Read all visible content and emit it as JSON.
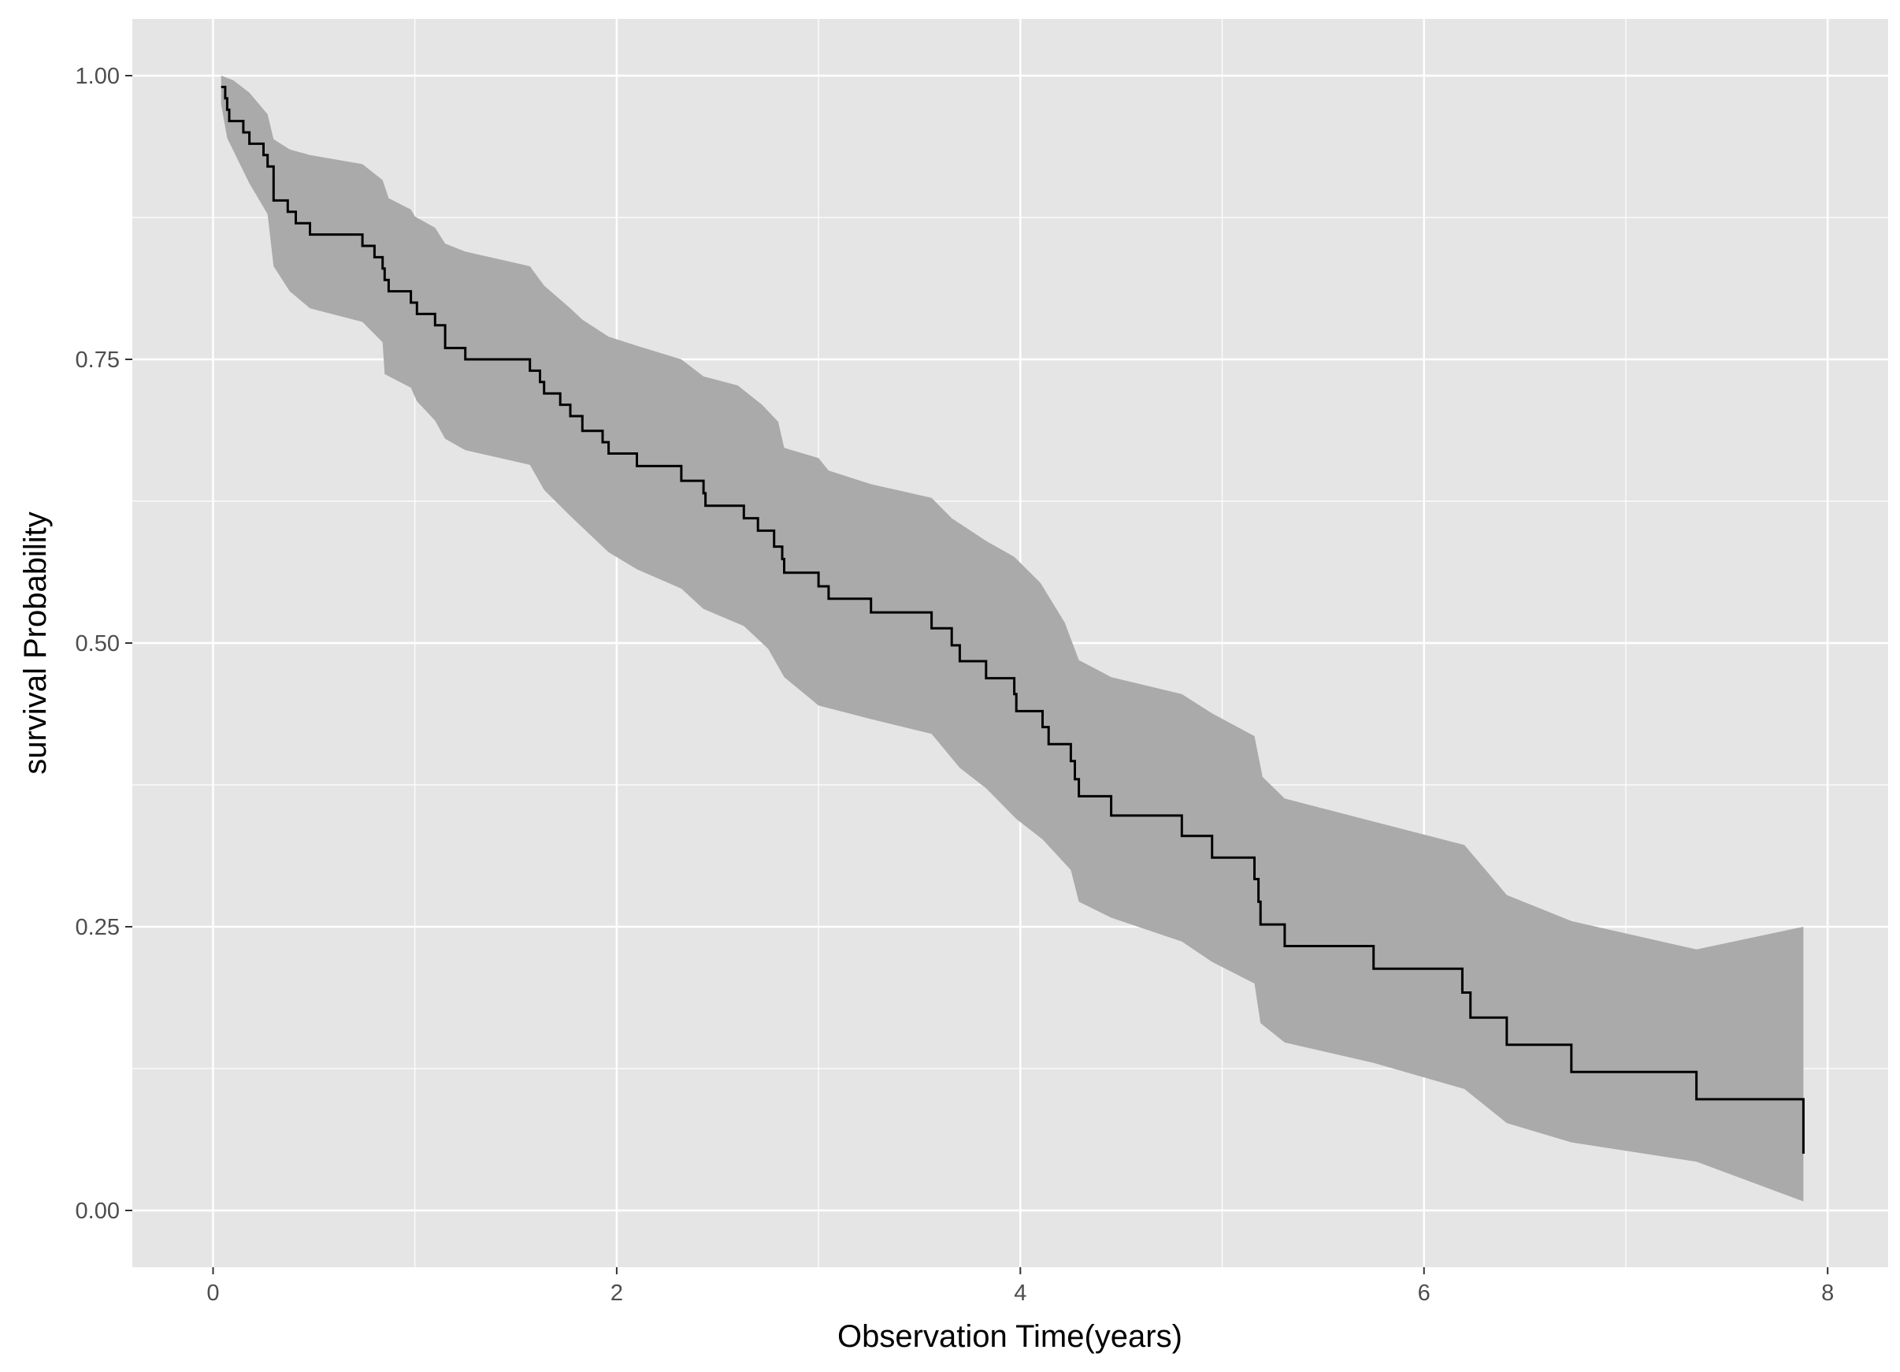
{
  "chart_data": {
    "type": "line",
    "subtype": "kaplan-meier step curve with confidence band",
    "title": "",
    "xlabel": "Observation Time(years)",
    "ylabel": "survival Probability",
    "xlim": [
      -0.4,
      8.3
    ],
    "ylim": [
      -0.05,
      1.05
    ],
    "x_ticks": [
      0,
      2,
      4,
      6,
      8
    ],
    "x_tick_labels": [
      "0",
      "2",
      "4",
      "6",
      "8"
    ],
    "y_ticks": [
      0,
      0.25,
      0.5,
      0.75,
      1
    ],
    "y_tick_labels": [
      "0.00",
      "0.25",
      "0.50",
      "0.75",
      "1.00"
    ],
    "grid": true,
    "legend": "none",
    "colors": {
      "panel_background": "#e5e5e5",
      "grid_line": "#ffffff",
      "band_fill": "#aaaaaa",
      "curve": "#000000"
    },
    "series": [
      {
        "steps": [
          [
            0.04,
            0.99
          ],
          [
            0.06,
            0.98
          ],
          [
            0.07,
            0.97
          ],
          [
            0.08,
            0.96
          ],
          [
            0.15,
            0.95
          ],
          [
            0.18,
            0.94
          ],
          [
            0.25,
            0.93
          ],
          [
            0.27,
            0.92
          ],
          [
            0.3,
            0.89
          ],
          [
            0.37,
            0.88
          ],
          [
            0.41,
            0.87
          ],
          [
            0.48,
            0.86
          ],
          [
            0.74,
            0.85
          ],
          [
            0.8,
            0.84
          ],
          [
            0.84,
            0.83
          ],
          [
            0.85,
            0.82
          ],
          [
            0.87,
            0.81
          ],
          [
            0.98,
            0.8
          ],
          [
            1.01,
            0.79
          ],
          [
            1.1,
            0.78
          ],
          [
            1.15,
            0.76
          ],
          [
            1.25,
            0.75
          ],
          [
            1.57,
            0.74
          ],
          [
            1.62,
            0.73
          ],
          [
            1.64,
            0.72
          ],
          [
            1.72,
            0.71
          ],
          [
            1.77,
            0.7
          ],
          [
            1.83,
            0.687
          ],
          [
            1.93,
            0.677
          ],
          [
            1.96,
            0.667
          ],
          [
            2.1,
            0.656
          ],
          [
            2.32,
            0.643
          ],
          [
            2.43,
            0.632
          ],
          [
            2.44,
            0.621
          ],
          [
            2.63,
            0.61
          ],
          [
            2.7,
            0.599
          ],
          [
            2.78,
            0.585
          ],
          [
            2.82,
            0.574
          ],
          [
            2.83,
            0.562
          ],
          [
            3.0,
            0.55
          ],
          [
            3.05,
            0.539
          ],
          [
            3.26,
            0.527
          ],
          [
            3.56,
            0.513
          ],
          [
            3.66,
            0.498
          ],
          [
            3.7,
            0.484
          ],
          [
            3.83,
            0.469
          ],
          [
            3.97,
            0.455
          ],
          [
            3.98,
            0.44
          ],
          [
            4.11,
            0.426
          ],
          [
            4.14,
            0.411
          ],
          [
            4.25,
            0.396
          ],
          [
            4.27,
            0.38
          ],
          [
            4.29,
            0.365
          ],
          [
            4.45,
            0.348
          ],
          [
            4.8,
            0.33
          ],
          [
            4.95,
            0.311
          ],
          [
            5.16,
            0.292
          ],
          [
            5.18,
            0.272
          ],
          [
            5.19,
            0.252
          ],
          [
            5.31,
            0.233
          ],
          [
            5.75,
            0.213
          ],
          [
            6.19,
            0.192
          ],
          [
            6.23,
            0.17
          ],
          [
            6.41,
            0.146
          ],
          [
            6.73,
            0.122
          ],
          [
            7.35,
            0.098
          ],
          [
            7.88,
            0.05
          ]
        ],
        "upper": [
          [
            0.04,
            1.0
          ],
          [
            0.1,
            0.996
          ],
          [
            0.18,
            0.985
          ],
          [
            0.27,
            0.966
          ],
          [
            0.3,
            0.944
          ],
          [
            0.38,
            0.935
          ],
          [
            0.48,
            0.93
          ],
          [
            0.74,
            0.922
          ],
          [
            0.84,
            0.908
          ],
          [
            0.87,
            0.892
          ],
          [
            0.98,
            0.882
          ],
          [
            1.0,
            0.876
          ],
          [
            1.1,
            0.866
          ],
          [
            1.15,
            0.852
          ],
          [
            1.25,
            0.845
          ],
          [
            1.57,
            0.832
          ],
          [
            1.64,
            0.815
          ],
          [
            1.77,
            0.795
          ],
          [
            1.83,
            0.785
          ],
          [
            1.96,
            0.77
          ],
          [
            2.1,
            0.762
          ],
          [
            2.32,
            0.75
          ],
          [
            2.43,
            0.735
          ],
          [
            2.6,
            0.727
          ],
          [
            2.72,
            0.71
          ],
          [
            2.8,
            0.695
          ],
          [
            2.83,
            0.672
          ],
          [
            3.0,
            0.663
          ],
          [
            3.05,
            0.652
          ],
          [
            3.26,
            0.64
          ],
          [
            3.56,
            0.628
          ],
          [
            3.66,
            0.61
          ],
          [
            3.83,
            0.59
          ],
          [
            3.97,
            0.576
          ],
          [
            4.1,
            0.553
          ],
          [
            4.22,
            0.518
          ],
          [
            4.29,
            0.485
          ],
          [
            4.45,
            0.47
          ],
          [
            4.8,
            0.455
          ],
          [
            4.95,
            0.438
          ],
          [
            5.16,
            0.418
          ],
          [
            5.2,
            0.382
          ],
          [
            5.31,
            0.363
          ],
          [
            6.2,
            0.322
          ],
          [
            6.41,
            0.278
          ],
          [
            6.73,
            0.255
          ],
          [
            7.35,
            0.23
          ],
          [
            7.88,
            0.25
          ]
        ],
        "lower": [
          [
            0.04,
            0.975
          ],
          [
            0.07,
            0.945
          ],
          [
            0.18,
            0.905
          ],
          [
            0.27,
            0.878
          ],
          [
            0.3,
            0.832
          ],
          [
            0.38,
            0.81
          ],
          [
            0.48,
            0.795
          ],
          [
            0.74,
            0.783
          ],
          [
            0.84,
            0.765
          ],
          [
            0.85,
            0.737
          ],
          [
            0.98,
            0.725
          ],
          [
            1.01,
            0.713
          ],
          [
            1.1,
            0.696
          ],
          [
            1.15,
            0.68
          ],
          [
            1.25,
            0.67
          ],
          [
            1.57,
            0.657
          ],
          [
            1.64,
            0.635
          ],
          [
            1.77,
            0.612
          ],
          [
            1.96,
            0.58
          ],
          [
            2.1,
            0.565
          ],
          [
            2.32,
            0.548
          ],
          [
            2.43,
            0.53
          ],
          [
            2.63,
            0.515
          ],
          [
            2.75,
            0.495
          ],
          [
            2.83,
            0.47
          ],
          [
            3.0,
            0.445
          ],
          [
            3.26,
            0.433
          ],
          [
            3.56,
            0.42
          ],
          [
            3.7,
            0.39
          ],
          [
            3.83,
            0.372
          ],
          [
            3.98,
            0.345
          ],
          [
            4.11,
            0.327
          ],
          [
            4.25,
            0.3
          ],
          [
            4.29,
            0.272
          ],
          [
            4.45,
            0.258
          ],
          [
            4.8,
            0.237
          ],
          [
            4.95,
            0.219
          ],
          [
            5.16,
            0.2
          ],
          [
            5.19,
            0.165
          ],
          [
            5.31,
            0.148
          ],
          [
            5.75,
            0.13
          ],
          [
            6.2,
            0.107
          ],
          [
            6.41,
            0.077
          ],
          [
            6.73,
            0.06
          ],
          [
            7.35,
            0.043
          ],
          [
            7.88,
            0.008
          ]
        ]
      }
    ]
  }
}
